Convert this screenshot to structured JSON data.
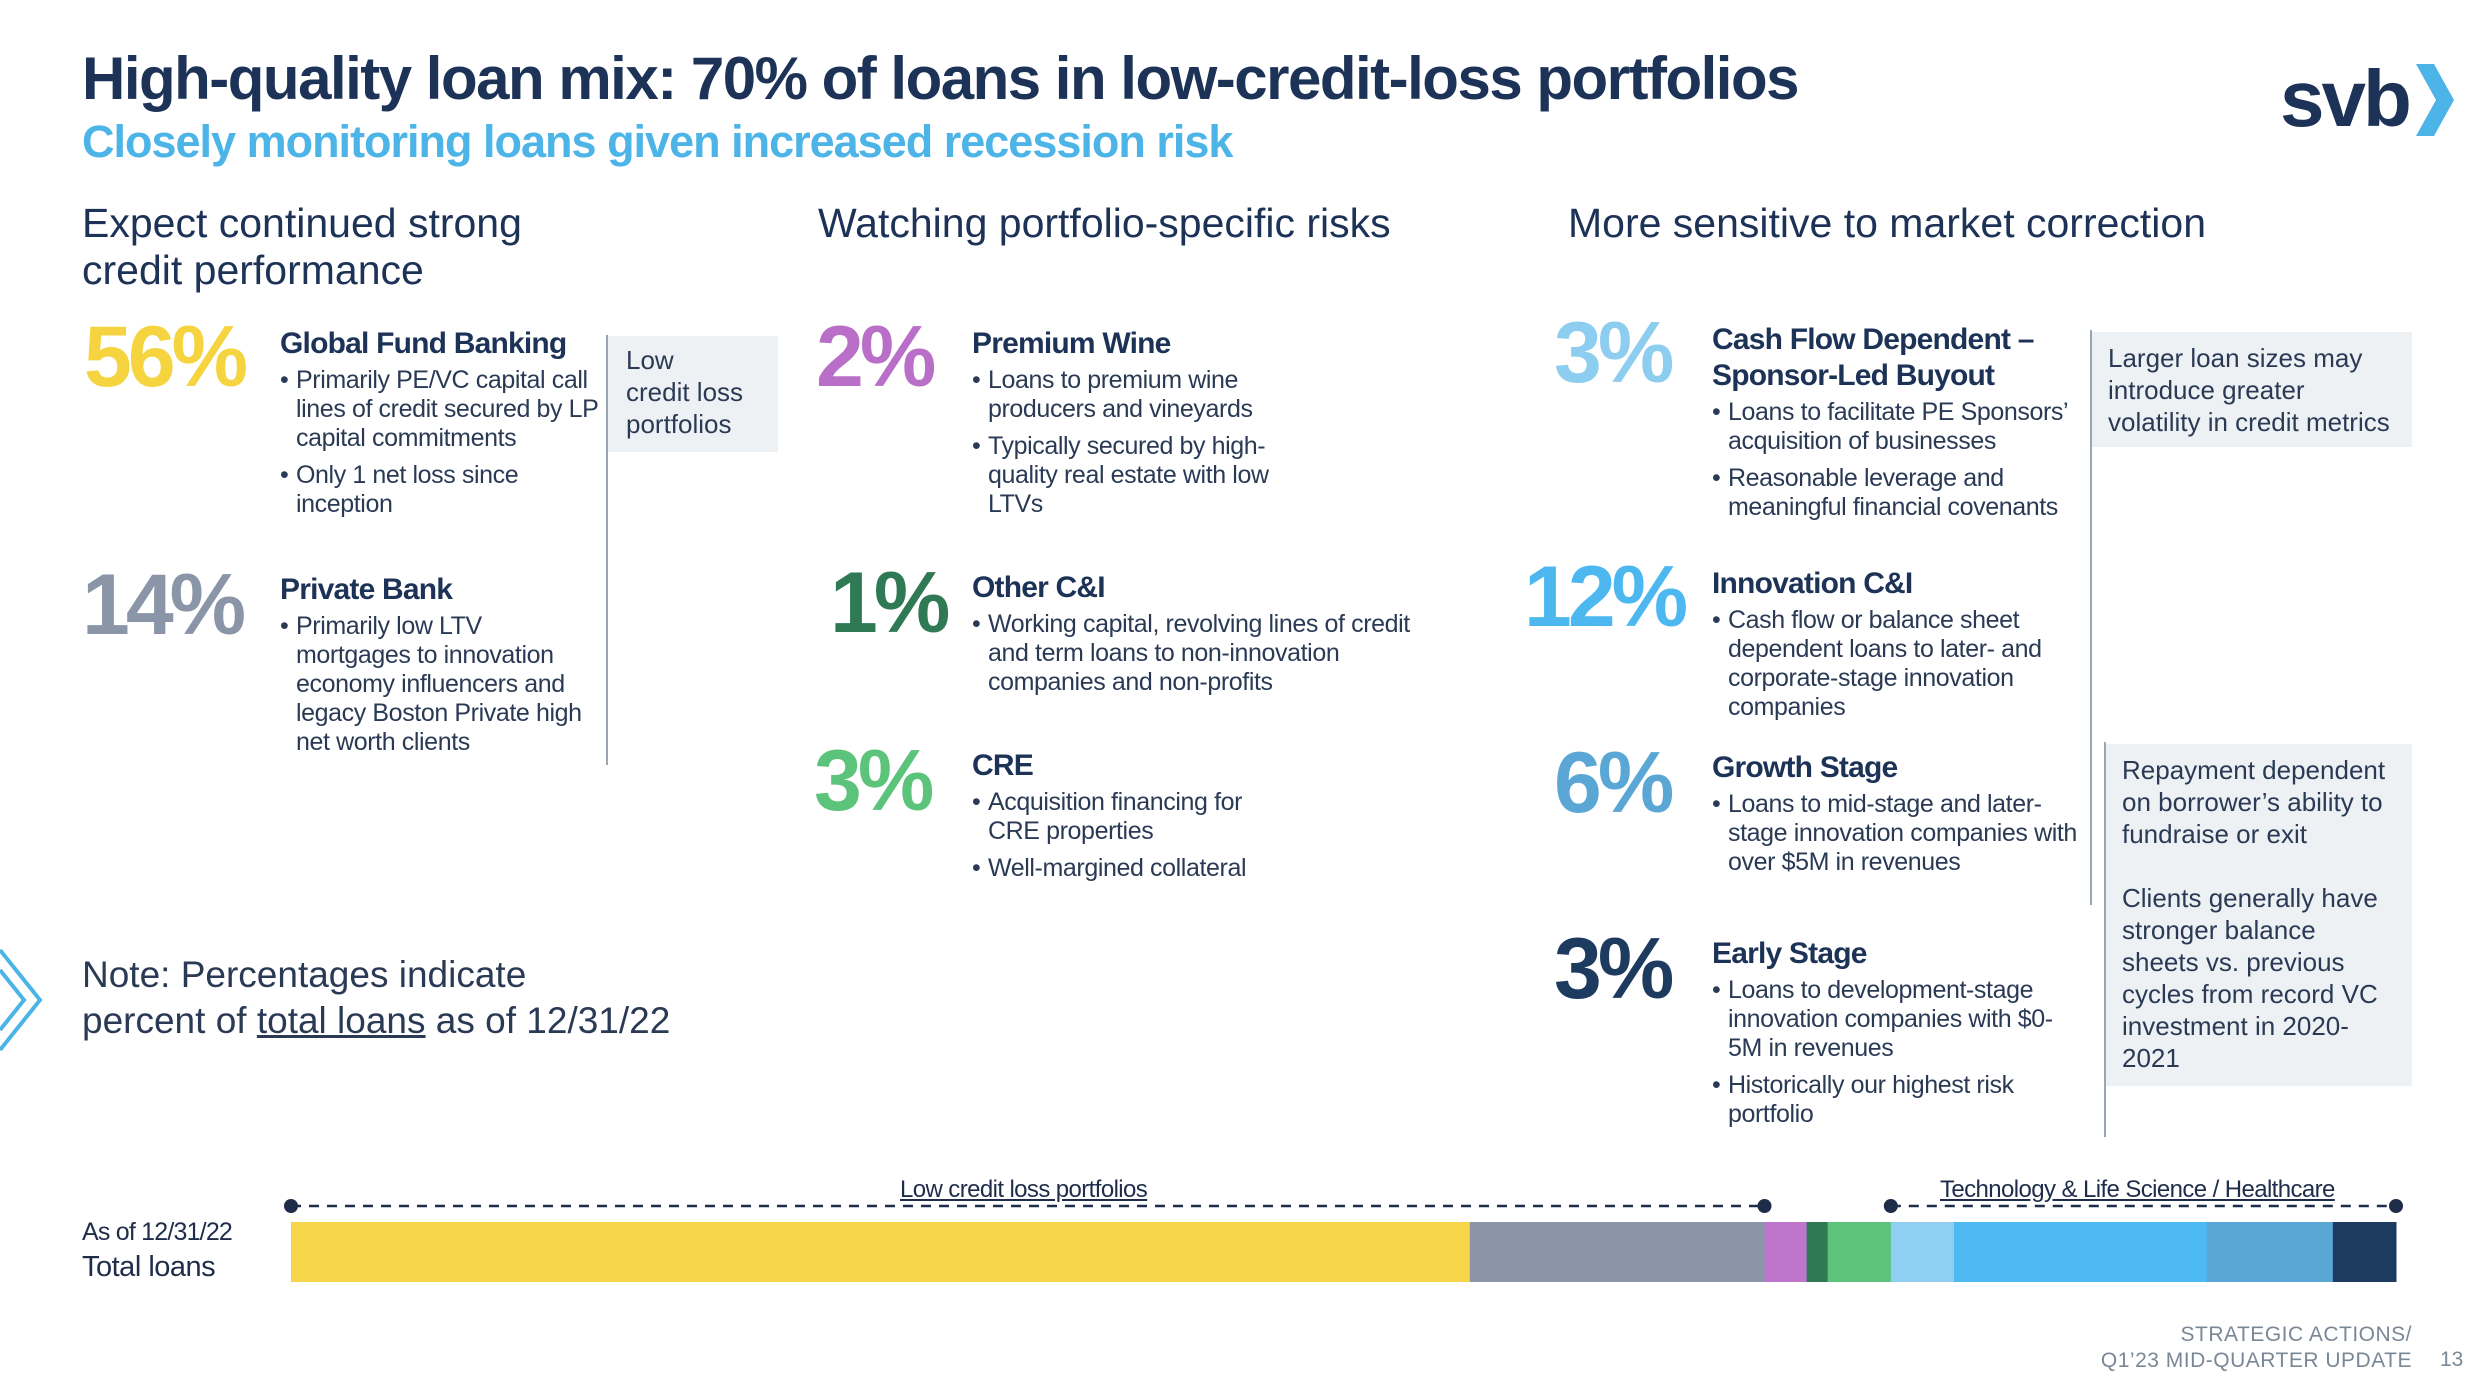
{
  "header": {
    "title": "High-quality loan mix: 70% of loans in low-credit-loss portfolios",
    "subtitle": "Closely monitoring loans given increased recession risk",
    "logo_text": "svb"
  },
  "columns": {
    "left": {
      "heading_line1": "Expect continued strong",
      "heading_line2": "credit performance",
      "box_line1": "Low",
      "box_line2": "credit loss",
      "box_line3": "portfolios",
      "items": [
        {
          "pct": "56%",
          "color": "#f5d43f",
          "title": "Global Fund Banking",
          "bullets": [
            "Primarily PE/VC capital call lines of credit secured by LP capital commitments",
            "Only 1 net loss since inception"
          ]
        },
        {
          "pct": "14%",
          "color": "#8a96a8",
          "title": "Private Bank",
          "bullets": [
            "Primarily low LTV mortgages to innovation economy influencers and legacy Boston Private high net worth clients"
          ]
        }
      ]
    },
    "middle": {
      "heading": "Watching portfolio-specific risks",
      "items": [
        {
          "pct": "2%",
          "color": "#b96fc8",
          "title": "Premium Wine",
          "bullets": [
            "Loans to premium wine producers and vineyards",
            "Typically secured by high-quality real estate with low LTVs"
          ]
        },
        {
          "pct": "1%",
          "color": "#2f7a54",
          "title": "Other C&I",
          "bullets": [
            "Working capital, revolving lines of credit and term loans to non-innovation companies and non-profits"
          ]
        },
        {
          "pct": "3%",
          "color": "#5cc47a",
          "title": "CRE",
          "bullets": [
            "Acquisition financing for CRE properties",
            "Well-margined collateral"
          ]
        }
      ]
    },
    "right": {
      "heading": "More sensitive to market correction",
      "box1": "Larger loan sizes may introduce greater volatility in credit metrics",
      "box2_p1": "Repayment dependent on borrower’s ability to fundraise or exit",
      "box2_p2": "Clients generally have stronger balance sheets vs. previous cycles from record VC investment in 2020-2021",
      "items": [
        {
          "pct": "3%",
          "color": "#8ccdf0",
          "title_line1": "Cash Flow Dependent –",
          "title_line2": "Sponsor-Led Buyout",
          "bullets": [
            "Loans to facilitate PE Sponsors’ acquisition of businesses",
            "Reasonable leverage and meaningful financial covenants"
          ]
        },
        {
          "pct": "12%",
          "color": "#4db8f0",
          "title": "Innovation C&I",
          "bullets": [
            "Cash flow or balance sheet dependent loans to later- and corporate-stage innovation companies"
          ]
        },
        {
          "pct": "6%",
          "color": "#5aa7d6",
          "title": "Growth Stage",
          "bullets": [
            "Loans to mid-stage and later-stage innovation companies with over $5M in revenues"
          ]
        },
        {
          "pct": "3%",
          "color": "#1d3a5f",
          "title": "Early Stage",
          "bullets": [
            "Loans to development-stage innovation companies with $0-5M in revenues",
            "Historically our highest risk portfolio"
          ]
        }
      ]
    }
  },
  "note": {
    "line1": "Note: Percentages indicate",
    "line2_pre": "percent of ",
    "line2_link": "total loans",
    "line2_post": " as of 12/31/22"
  },
  "bar": {
    "label_line1": "As of 12/31/22",
    "label_line2": "Total loans",
    "legend_low": "Low credit loss portfolios",
    "legend_tech": "Technology & Life Science / Healthcare",
    "segments": [
      {
        "value": 56,
        "color": "#f7d54a"
      },
      {
        "value": 14,
        "color": "#8a96a8"
      },
      {
        "value": 2,
        "color": "#bf75cc"
      },
      {
        "value": 1,
        "color": "#2f7a54"
      },
      {
        "value": 3,
        "color": "#5cc47a"
      },
      {
        "value": 3,
        "color": "#8fd0f2"
      },
      {
        "value": 12,
        "color": "#4dbaf4"
      },
      {
        "value": 6,
        "color": "#5aa7d6"
      },
      {
        "value": 3,
        "color": "#1d3a5f"
      }
    ]
  },
  "footer": {
    "line1": "STRATEGIC ACTIONS/",
    "line2": "Q1’23 MID-QUARTER UPDATE",
    "page": "13"
  }
}
